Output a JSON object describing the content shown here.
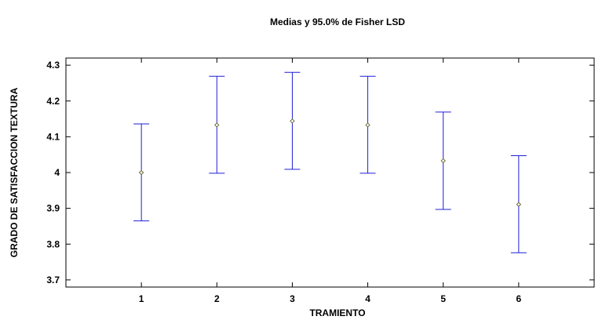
{
  "chart_data": {
    "type": "errorbar",
    "title": "Medias y 95.0% de Fisher LSD",
    "xlabel": "TRAMIENTO",
    "ylabel": "GRADO DE SATISFACCION TEXTURA",
    "categories": [
      "1",
      "2",
      "3",
      "4",
      "5",
      "6"
    ],
    "means": [
      4.0,
      4.133,
      4.144,
      4.133,
      4.033,
      3.911
    ],
    "lower": [
      3.865,
      3.998,
      4.009,
      3.998,
      3.897,
      3.776
    ],
    "upper": [
      4.136,
      4.269,
      4.28,
      4.269,
      4.169,
      4.047
    ],
    "ylim": [
      3.68,
      4.32
    ],
    "xlim": [
      0,
      7
    ],
    "yticks": [
      "3.7",
      "3.8",
      "3.9",
      "4",
      "4.1",
      "4.2",
      "4.3"
    ],
    "grid": false,
    "legend": "none",
    "colors": {
      "interval": "#1f1fd6",
      "marker": "#6b6b3a",
      "axis": "#000000"
    }
  }
}
